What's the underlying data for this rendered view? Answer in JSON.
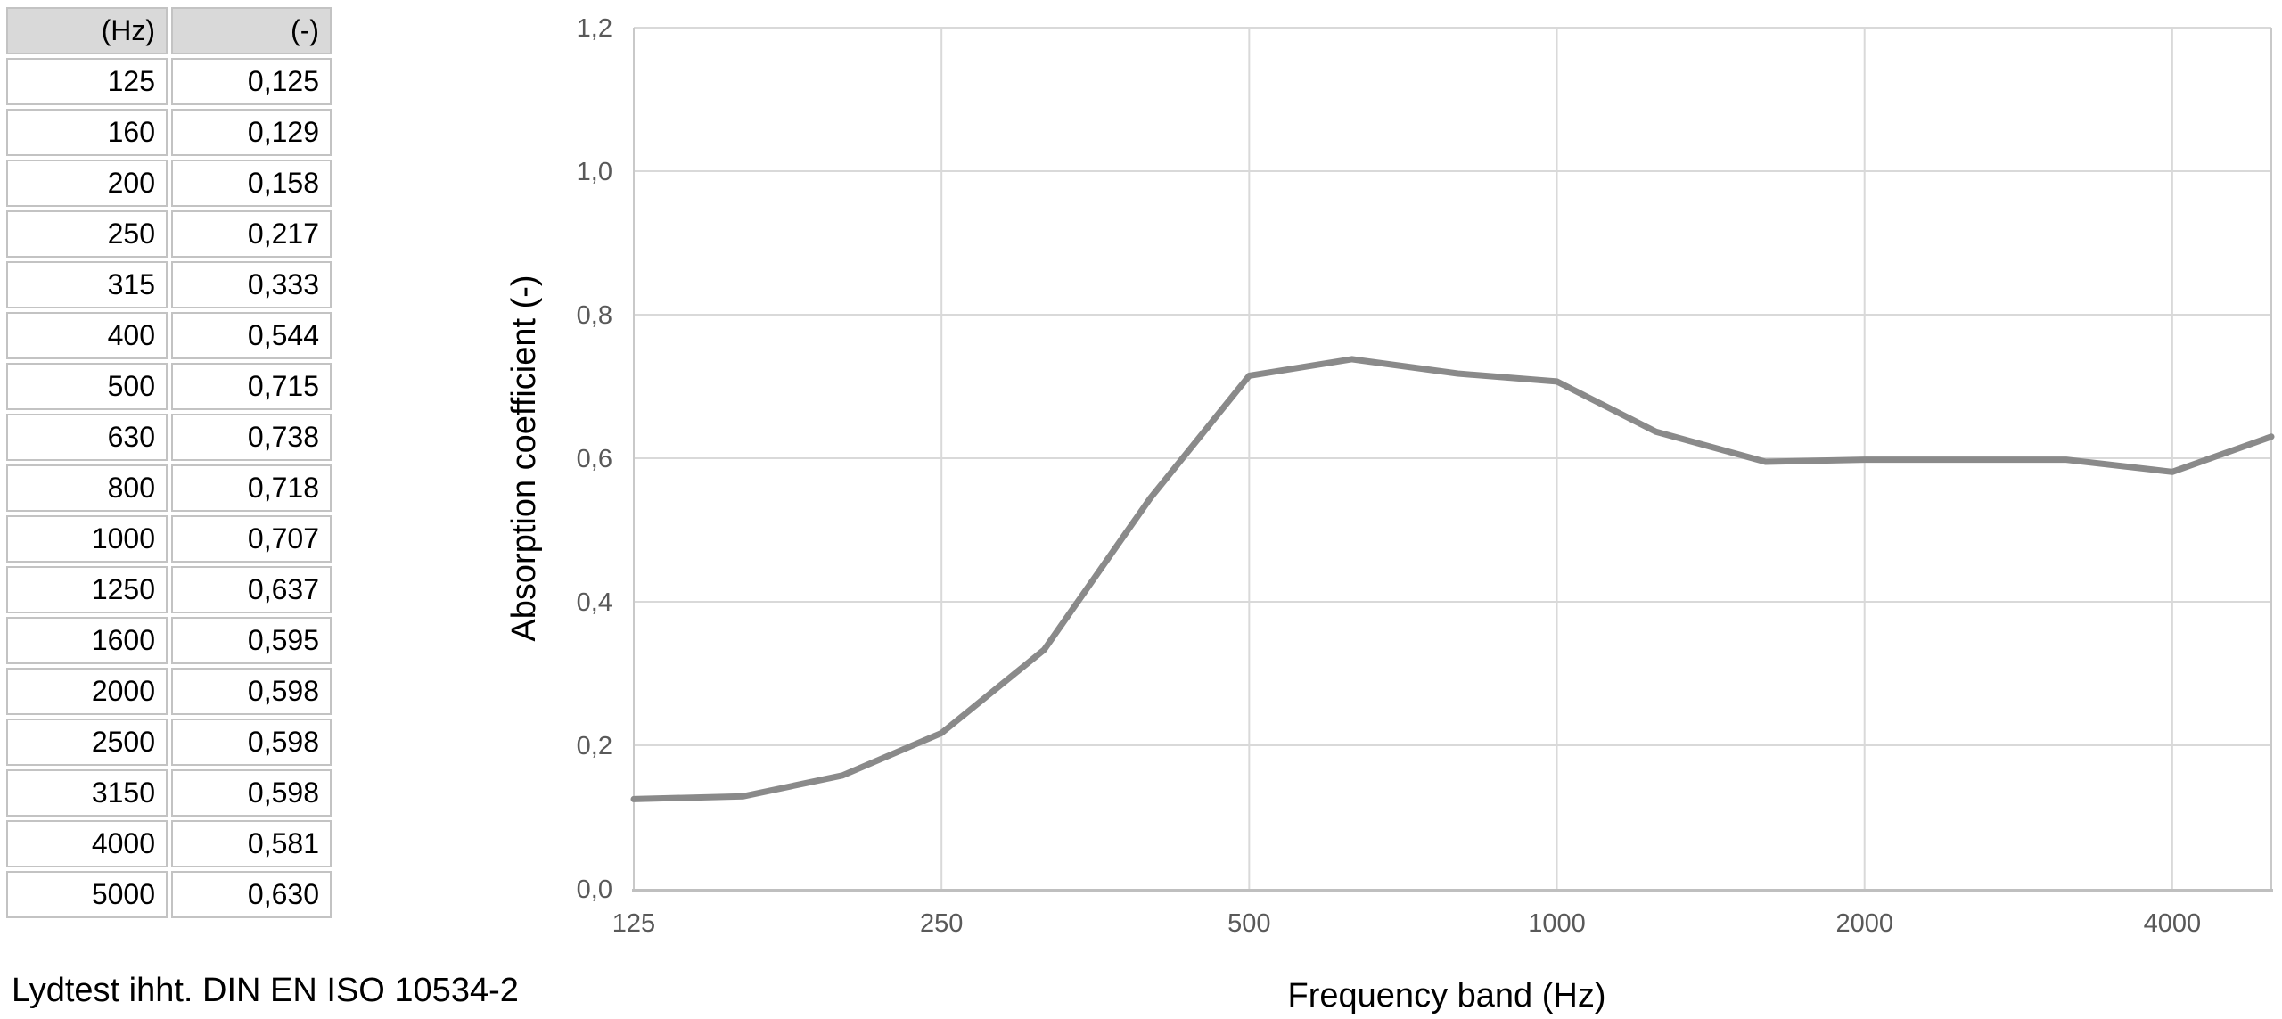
{
  "table": {
    "headers": [
      "(Hz)",
      "(-)"
    ],
    "rows": [
      [
        "125",
        "0,125"
      ],
      [
        "160",
        "0,129"
      ],
      [
        "200",
        "0,158"
      ],
      [
        "250",
        "0,217"
      ],
      [
        "315",
        "0,333"
      ],
      [
        "400",
        "0,544"
      ],
      [
        "500",
        "0,715"
      ],
      [
        "630",
        "0,738"
      ],
      [
        "800",
        "0,718"
      ],
      [
        "1000",
        "0,707"
      ],
      [
        "1250",
        "0,637"
      ],
      [
        "1600",
        "0,595"
      ],
      [
        "2000",
        "0,598"
      ],
      [
        "2500",
        "0,598"
      ],
      [
        "3150",
        "0,598"
      ],
      [
        "4000",
        "0,581"
      ],
      [
        "5000",
        "0,630"
      ]
    ]
  },
  "caption": "Lydtest ihht. DIN EN ISO 10534-2",
  "chart_data": {
    "type": "line",
    "title": "",
    "xlabel": "Frequency band (Hz)",
    "ylabel": "Absorption coefficient (-)",
    "x_scale": "log2",
    "xlim": [
      125,
      5000
    ],
    "ylim": [
      0,
      1.2
    ],
    "grid": true,
    "legend": "none",
    "x": [
      125,
      160,
      200,
      250,
      315,
      400,
      500,
      630,
      800,
      1000,
      1250,
      1600,
      2000,
      2500,
      3150,
      4000,
      5000
    ],
    "series": [
      {
        "name": "Absorption coefficient",
        "values": [
          0.125,
          0.129,
          0.158,
          0.217,
          0.333,
          0.544,
          0.715,
          0.738,
          0.718,
          0.707,
          0.637,
          0.595,
          0.598,
          0.598,
          0.598,
          0.581,
          0.63
        ]
      }
    ],
    "x_ticks": [
      {
        "value": 125,
        "label": "125"
      },
      {
        "value": 250,
        "label": "250"
      },
      {
        "value": 500,
        "label": "500"
      },
      {
        "value": 1000,
        "label": "1000"
      },
      {
        "value": 2000,
        "label": "2000"
      },
      {
        "value": 4000,
        "label": "4000"
      }
    ],
    "y_ticks": [
      {
        "value": 0.0,
        "label": "0,0"
      },
      {
        "value": 0.2,
        "label": "0,2"
      },
      {
        "value": 0.4,
        "label": "0,4"
      },
      {
        "value": 0.6,
        "label": "0,6"
      },
      {
        "value": 0.8,
        "label": "0,8"
      },
      {
        "value": 1.0,
        "label": "1,0"
      },
      {
        "value": 1.2,
        "label": "1,2"
      }
    ],
    "colors": {
      "line": "#8a8a8a",
      "gridline": "#d9d9d9",
      "axis_line": "#bfbfbf",
      "plot_border": "#c9c9c9",
      "tick_label": "#595959",
      "title_text": "#000000"
    }
  }
}
